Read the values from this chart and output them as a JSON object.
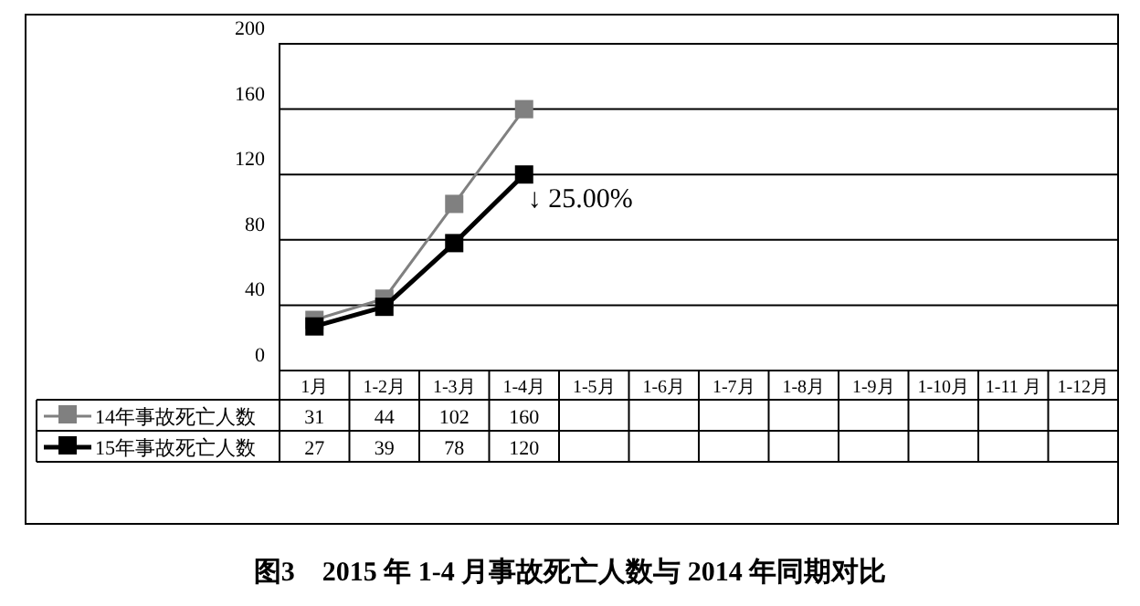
{
  "chart_data": {
    "type": "line",
    "title": "图3　2015 年 1-4 月事故死亡人数与 2014 年同期对比",
    "categories": [
      "1月",
      "1-2月",
      "1-3月",
      "1-4月",
      "1-5月",
      "1-6月",
      "1-7月",
      "1-8月",
      "1-9月",
      "1-10月",
      "1-11 月",
      "1-12月"
    ],
    "series": [
      {
        "name": "14年事故死亡人数",
        "color": "#808080",
        "values": [
          31,
          44,
          102,
          160,
          null,
          null,
          null,
          null,
          null,
          null,
          null,
          null
        ]
      },
      {
        "name": "15年事故死亡人数",
        "color": "#000000",
        "values": [
          27,
          39,
          78,
          120,
          null,
          null,
          null,
          null,
          null,
          null,
          null,
          null
        ]
      }
    ],
    "ylim": [
      0,
      200
    ],
    "yticks": [
      0,
      40,
      80,
      120,
      160,
      200
    ],
    "grid": "y",
    "marker": "square",
    "line_style": "solid",
    "data_labels": true,
    "legend": "bottom left",
    "annotations": [
      {
        "text": "↓ 25.00%",
        "x": "1-4月",
        "y": 120
      }
    ]
  }
}
